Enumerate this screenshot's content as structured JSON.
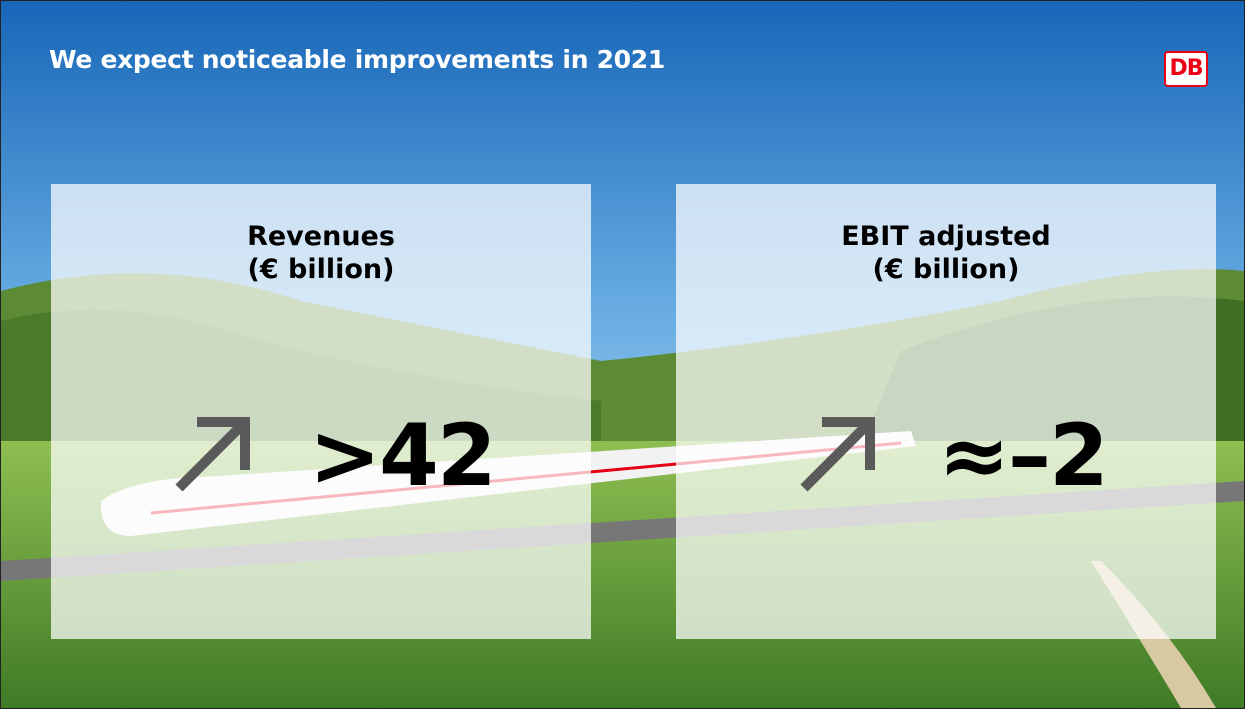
{
  "header": {
    "title": "We expect noticeable improvements in 2021",
    "logo": "DB"
  },
  "cards": [
    {
      "title": "Revenues",
      "unit": "(€ billion)",
      "value": ">42"
    },
    {
      "title": "EBIT adjusted",
      "unit": "(€ billion)",
      "value": "≈–2"
    }
  ]
}
